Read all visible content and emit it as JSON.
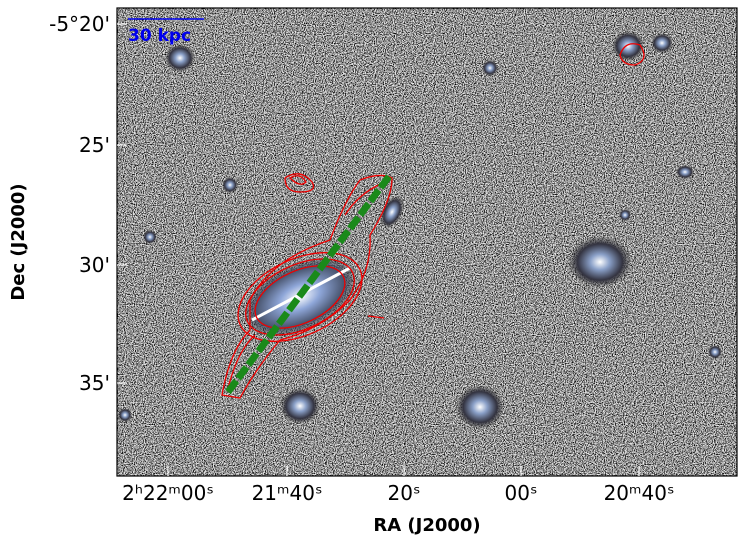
{
  "axes": {
    "x_label": "RA (J2000)",
    "y_label": "Dec (J2000)",
    "x_ticks": [
      "2ʰ22ᵐ00ˢ",
      "21ᵐ40ˢ",
      "20ˢ",
      "00ˢ",
      "20ᵐ40ˢ"
    ],
    "y_ticks": [
      "-5°20'",
      "25'",
      "30'",
      "35'"
    ]
  },
  "scale_bar": "30 kpc"
}
